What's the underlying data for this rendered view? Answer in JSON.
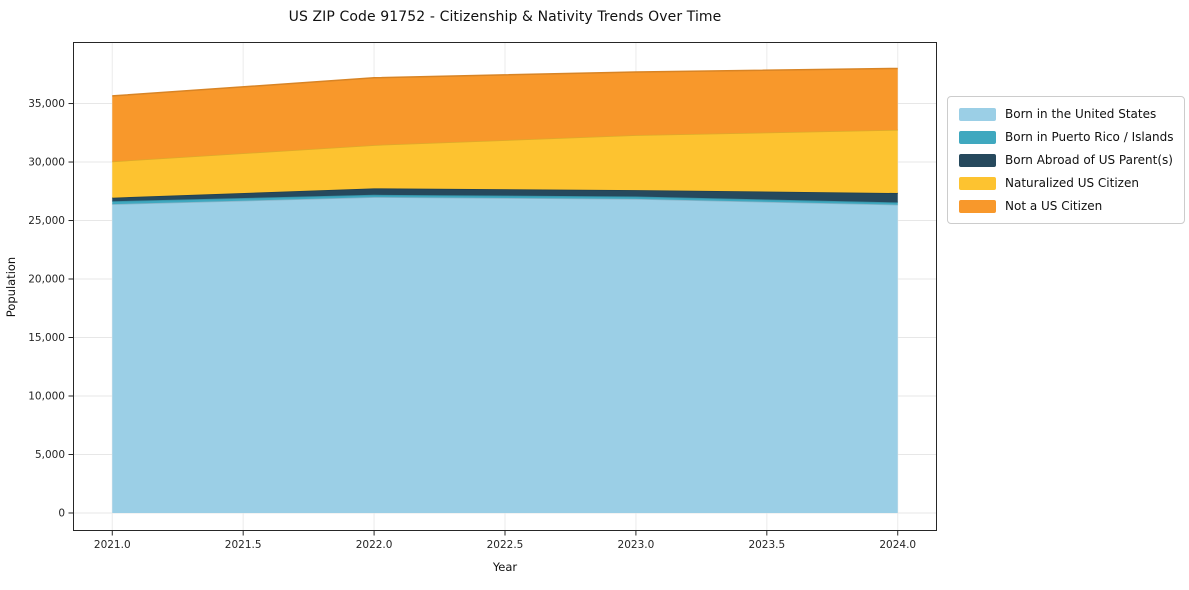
{
  "chart_data": {
    "type": "area",
    "stacked": true,
    "title": "US ZIP Code 91752 - Citizenship & Nativity Trends Over Time",
    "xlabel": "Year",
    "ylabel": "Population",
    "x": [
      2021,
      2022,
      2023,
      2024
    ],
    "series": [
      {
        "name": "Born in the United States",
        "color": "#9bcfe6",
        "values": [
          26400,
          27000,
          26850,
          26350
        ]
      },
      {
        "name": "Born in Puerto Rico / Islands",
        "color": "#3fa8bf",
        "values": [
          250,
          200,
          200,
          200
        ]
      },
      {
        "name": "Born Abroad of US Parent(s)",
        "color": "#26495d",
        "values": [
          300,
          550,
          550,
          800
        ]
      },
      {
        "name": "Naturalized US Citizen",
        "color": "#fdc330",
        "values": [
          3100,
          3700,
          4700,
          5400
        ]
      },
      {
        "name": "Not a US Citizen",
        "color": "#f8982b",
        "values": [
          5600,
          5750,
          5400,
          5250
        ]
      }
    ],
    "totals": [
      35650,
      37200,
      37700,
      38000
    ],
    "xlim": [
      2020.85,
      2024.15
    ],
    "ylim": [
      -1540,
      40260
    ],
    "grid": true,
    "legend_position": "right-outside",
    "xticks": {
      "values": [
        2021.0,
        2021.5,
        2022.0,
        2022.5,
        2023.0,
        2023.5,
        2024.0
      ],
      "labels": [
        "2021.0",
        "2021.5",
        "2022.0",
        "2022.5",
        "2023.0",
        "2023.5",
        "2024.0"
      ]
    },
    "yticks": {
      "values": [
        0,
        5000,
        10000,
        15000,
        20000,
        25000,
        30000,
        35000
      ],
      "labels": [
        "0",
        "5,000",
        "10,000",
        "15,000",
        "20,000",
        "25,000",
        "30,000",
        "35,000"
      ]
    }
  },
  "colors": {
    "background": "#ffffff",
    "grid_vertical": "#ebebeb",
    "grid_horizontal": "#e7e7e7",
    "spine": "#262626",
    "tick_text": "#262626",
    "legend_border": "#cccccc"
  }
}
